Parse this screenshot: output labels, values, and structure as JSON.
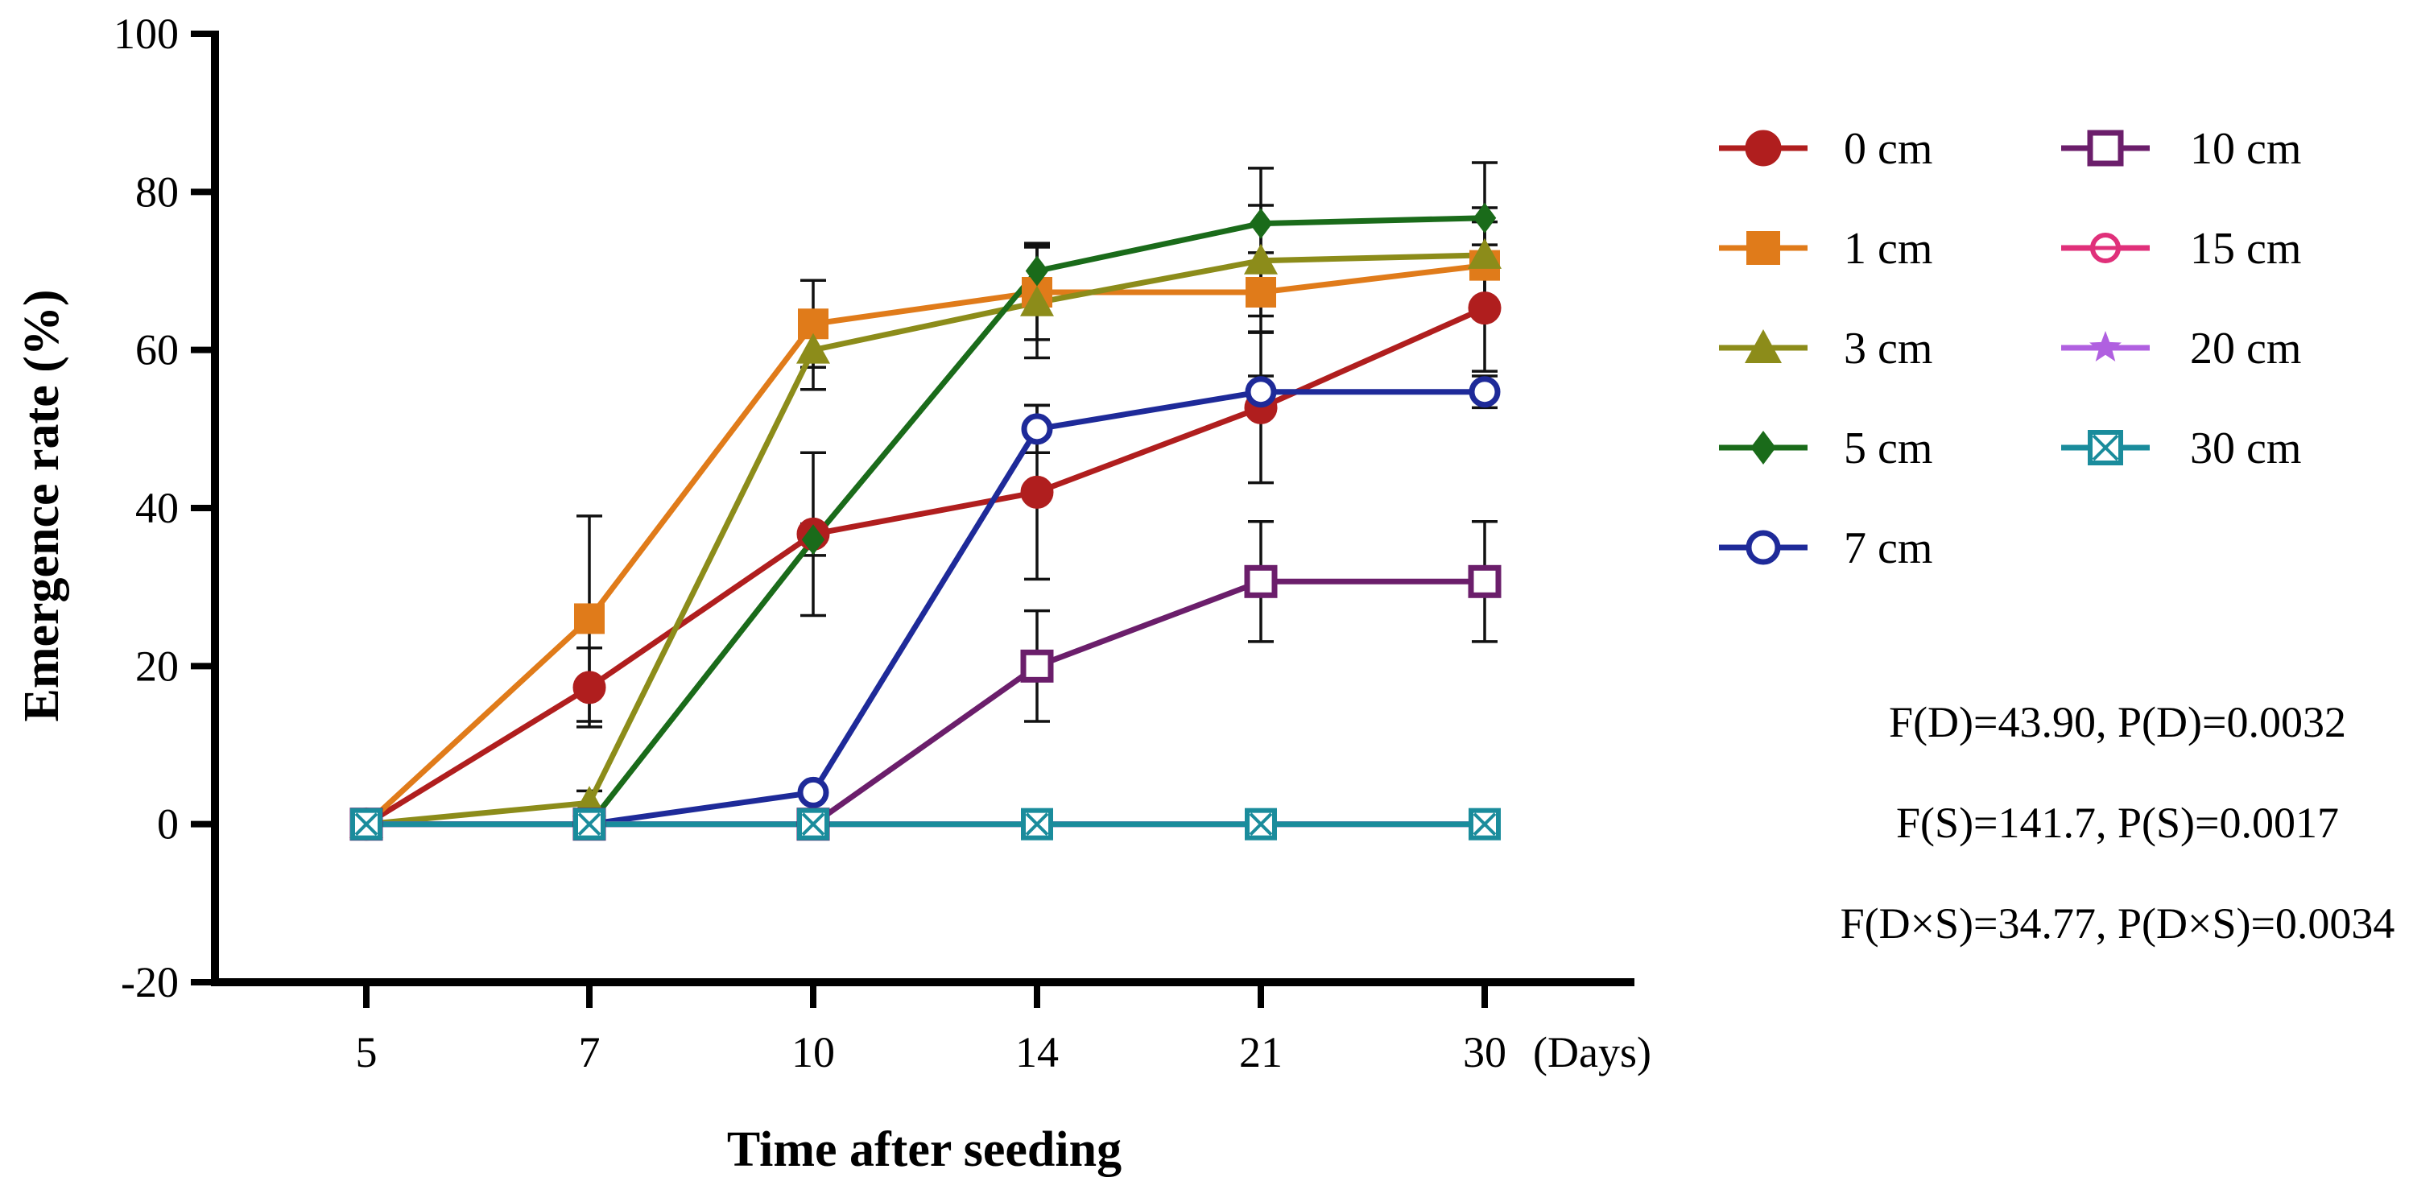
{
  "chart_data": {
    "type": "line",
    "title": "",
    "xlabel": "Time after seeding",
    "x_unit": "(Days)",
    "ylabel": "Emergence rate (%)",
    "ylim": [
      -20,
      100
    ],
    "yticks": [
      "100",
      "80",
      "60",
      "40",
      "20",
      "0",
      "-20"
    ],
    "categories": [
      "5",
      "7",
      "10",
      "14",
      "21",
      "30"
    ],
    "series": [
      {
        "name": "0 cm",
        "color": "#b01e1e",
        "marker": "circle-filled",
        "values": [
          0,
          17.3,
          36.7,
          42,
          52.7,
          65.3
        ],
        "errors": [
          0,
          5,
          10.3,
          11,
          9.5,
          8
        ]
      },
      {
        "name": "1 cm",
        "color": "#e07b1a",
        "marker": "square-filled",
        "values": [
          0,
          26,
          63.3,
          67.3,
          67.3,
          70.7
        ],
        "errors": [
          0,
          13,
          5.5,
          6,
          5,
          5.5
        ]
      },
      {
        "name": "3 cm",
        "color": "#8c8c1a",
        "marker": "triangle-filled",
        "values": [
          0,
          2.7,
          60,
          66,
          71.3,
          72
        ],
        "errors": [
          0,
          1.5,
          5,
          7,
          7,
          6
        ]
      },
      {
        "name": "5 cm",
        "color": "#1a6b1a",
        "marker": "diamond-filled",
        "values": [
          0,
          0,
          36,
          70,
          76,
          76.7
        ],
        "errors": [
          0,
          0,
          2,
          3.5,
          7,
          7
        ]
      },
      {
        "name": "7 cm",
        "color": "#1e2a99",
        "marker": "circle-open",
        "values": [
          0,
          0,
          4,
          50,
          54.7,
          54.7
        ],
        "errors": [
          0,
          0,
          0,
          3,
          2,
          2
        ]
      },
      {
        "name": "10 cm",
        "color": "#6b1e6b",
        "marker": "square-open",
        "values": [
          0,
          0,
          0,
          20,
          30.7,
          30.7
        ],
        "errors": [
          0,
          0,
          0,
          7,
          7.6,
          7.6
        ]
      },
      {
        "name": "15 cm",
        "color": "#e0307a",
        "marker": "circle-open-bar",
        "values": [
          0,
          0,
          0,
          0,
          0,
          0
        ],
        "errors": [
          0,
          0,
          0,
          0,
          0,
          0
        ]
      },
      {
        "name": "20 cm",
        "color": "#b060e0",
        "marker": "star",
        "values": [
          0,
          0,
          0,
          0,
          0,
          0
        ],
        "errors": [
          0,
          0,
          0,
          0,
          0,
          0
        ]
      },
      {
        "name": "30 cm",
        "color": "#1a8c9c",
        "marker": "square-x",
        "values": [
          0,
          0,
          0,
          0,
          0,
          0
        ],
        "errors": [
          0,
          0,
          0,
          0,
          0,
          0
        ]
      }
    ],
    "legend_position": "right",
    "annotations": [
      "F(D)=43.90, P(D)=0.0032",
      "F(S)=141.7, P(S)=0.0017",
      "F(D×S)=34.77, P(D×S)=0.0034"
    ]
  }
}
